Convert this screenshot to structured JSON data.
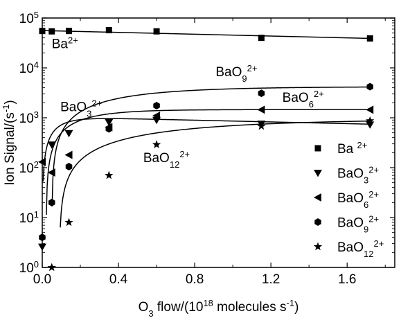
{
  "chart_data": {
    "type": "scatter",
    "y_scale": "log",
    "xlim": [
      0,
      1.85
    ],
    "ylim": [
      1,
      100000
    ],
    "grid": false,
    "legend_position": "right",
    "xlabel": {
      "prefix": "O",
      "sub": "3",
      "mid": " flow/(10",
      "sup": "18",
      "suffix": " molecules s",
      "sup2": "-1",
      "end": ")"
    },
    "ylabel": {
      "prefix": "Ion Signal/(s",
      "sup": "-1",
      "end": ")"
    },
    "x_ticks": [
      {
        "value": 0.0,
        "label": "0.0"
      },
      {
        "value": 0.4,
        "label": "0.4"
      },
      {
        "value": 0.8,
        "label": "0.8"
      },
      {
        "value": 1.2,
        "label": "1.2"
      },
      {
        "value": 1.6,
        "label": "1.6"
      }
    ],
    "y_ticks": [
      {
        "value": 1,
        "base": "10",
        "exp": "0"
      },
      {
        "value": 10,
        "base": "10",
        "exp": "1"
      },
      {
        "value": 100,
        "base": "10",
        "exp": "2"
      },
      {
        "value": 1000,
        "base": "10",
        "exp": "3"
      },
      {
        "value": 10000,
        "base": "10",
        "exp": "4"
      },
      {
        "value": 100000,
        "base": "10",
        "exp": "5"
      }
    ],
    "series": [
      {
        "name": "Ba 2+",
        "legend": {
          "base": "Ba ",
          "sub": "",
          "sup": "2+"
        },
        "marker": "square",
        "x": [
          0.0,
          0.05,
          0.14,
          0.35,
          0.6,
          1.15,
          1.72
        ],
        "y": [
          55000,
          54000,
          55000,
          57000,
          54000,
          40000,
          39000
        ],
        "fit": {
          "kind": "linear_log",
          "y0": 56000,
          "y1": 39000,
          "x0": 0.0,
          "x1": 1.72
        }
      },
      {
        "name": "BaO3 2+",
        "legend": {
          "base": "BaO",
          "sub": "3",
          "sup": "2+"
        },
        "marker": "triangle-down",
        "x": [
          0.0,
          0.05,
          0.14,
          0.35,
          0.6,
          1.15,
          1.72
        ],
        "y": [
          2.6,
          290,
          490,
          820,
          900,
          760,
          730
        ],
        "fit": {
          "kind": "rise_decay",
          "A": 1050,
          "k": 12,
          "d": 0.2,
          "x0": 0.0,
          "x1": 1.72
        }
      },
      {
        "name": "BaO6 2+",
        "legend": {
          "base": "BaO",
          "sub": "6",
          "sup": "2+"
        },
        "marker": "triangle-left",
        "x": [
          0.0,
          0.05,
          0.14,
          0.35,
          0.6,
          1.15,
          1.72
        ],
        "y": [
          130,
          80,
          180,
          650,
          1100,
          1450,
          1450
        ],
        "fit": {
          "kind": "rise_delay",
          "A": 1460,
          "k": 5.2,
          "t0": 0.02,
          "x0": 0.0,
          "x1": 1.72
        }
      },
      {
        "name": "BaO9 2+",
        "legend": {
          "base": "BaO",
          "sub": "9",
          "sup": "2+"
        },
        "marker": "hexagon",
        "x": [
          0.0,
          0.05,
          0.14,
          0.35,
          0.6,
          1.15,
          1.72
        ],
        "y": [
          4,
          20,
          105,
          600,
          1750,
          3100,
          4200
        ],
        "fit": {
          "kind": "rise_delay",
          "A": 4200,
          "k": 2.5,
          "t0": 0.05,
          "x0": 0.0,
          "x1": 1.72
        }
      },
      {
        "name": "BaO12 2+",
        "legend": {
          "base": "BaO",
          "sub": "12",
          "sup": "2+"
        },
        "marker": "star",
        "x": [
          0.05,
          0.14,
          0.35,
          0.6,
          1.15,
          1.72
        ],
        "y": [
          1,
          8,
          70,
          290,
          680,
          870
        ],
        "fit": {
          "kind": "rise_delay",
          "A": 950,
          "k": 1.45,
          "t0": 0.09,
          "x0": 0.0,
          "x1": 1.72
        }
      }
    ],
    "annotations": [
      {
        "base": "Ba",
        "sub": "",
        "sup": "2+",
        "x": 0.05,
        "y": 25000
      },
      {
        "base": "BaO",
        "sub": "3",
        "sup": "2+",
        "x": 0.095,
        "y": 1350
      },
      {
        "base": "BaO",
        "sub": "9",
        "sup": "2+",
        "x": 0.91,
        "y": 6800
      },
      {
        "base": "BaO",
        "sub": "6",
        "sup": "2+",
        "x": 1.26,
        "y": 2100
      },
      {
        "base": "BaO",
        "sub": "12",
        "sup": "2+",
        "x": 0.53,
        "y": 130
      }
    ]
  }
}
